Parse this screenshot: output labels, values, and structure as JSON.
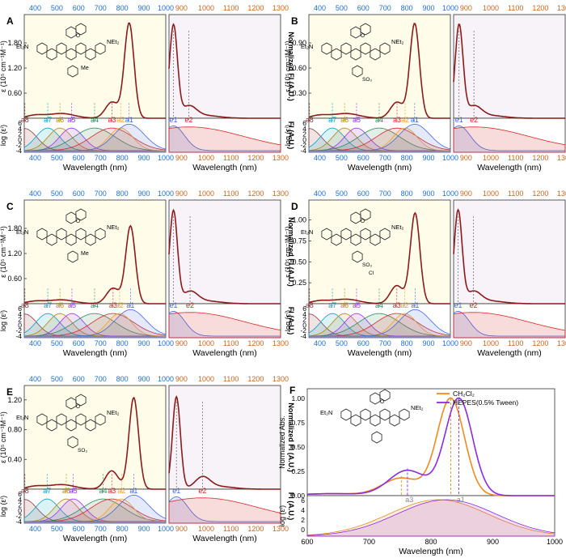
{
  "figure": {
    "x_label": "Wavelength (nm)",
    "abs_y_label": "ε (10⁵ cm⁻¹M⁻¹)",
    "fl_y_label": "Normalized Fl (A.U.)",
    "log_y_label": "log (εⁱ)",
    "fl_small_y_label": "Fl (A.U.)",
    "abs_x_ticks": [
      "400",
      "500",
      "600",
      "700",
      "800",
      "900",
      "1000"
    ],
    "fl_x_ticks": [
      "900",
      "1000",
      "1100",
      "1200",
      "1300"
    ],
    "log_y_ticks": [
      "6",
      "4",
      "2",
      "0",
      "-2",
      "-4"
    ],
    "abs_labels": [
      "a8",
      "a7",
      "a6",
      "a5",
      "a4",
      "a3",
      "a2",
      "a1"
    ],
    "em_labels": [
      "e1",
      "e2"
    ],
    "substituents": {
      "net2": "NEt₂",
      "et2n": "Et₂N",
      "me": "Me",
      "so3": "SO₃",
      "cl": "Cl",
      "o": "O"
    }
  },
  "chart_data": [
    {
      "panel": "A",
      "type": "line",
      "abs_yticks": [
        0.6,
        1.2,
        1.8
      ],
      "abs_ymax": 2.4,
      "abs_peak": 2.27,
      "shoulder_ratio": 0.17,
      "components": [
        {
          "label": "a8",
          "x": 353
        },
        {
          "label": "a7",
          "x": 458
        },
        {
          "label": "a6",
          "x": 514
        },
        {
          "label": "a5",
          "x": 567
        },
        {
          "label": "a4",
          "x": 673
        },
        {
          "label": "a3",
          "x": 753
        },
        {
          "label": "a2",
          "x": 793
        },
        {
          "label": "a1",
          "x": 832
        }
      ],
      "emission": [
        {
          "label": "e1",
          "x": 868
        },
        {
          "label": "e2",
          "x": 930
        }
      ]
    },
    {
      "panel": "B",
      "type": "line",
      "abs_yticks": [
        0.3,
        0.6,
        0.9
      ],
      "abs_ymax": 1.2,
      "abs_peak": 1.13,
      "shoulder_ratio": 0.17,
      "components": [
        {
          "label": "a8",
          "x": 353
        },
        {
          "label": "a7",
          "x": 458
        },
        {
          "label": "a6",
          "x": 514
        },
        {
          "label": "a5",
          "x": 569
        },
        {
          "label": "a4",
          "x": 673
        },
        {
          "label": "a3",
          "x": 755
        },
        {
          "label": "a2",
          "x": 792
        },
        {
          "label": "a1",
          "x": 836
        }
      ],
      "emission": [
        {
          "label": "e1",
          "x": 872
        },
        {
          "label": "e2",
          "x": 932
        }
      ]
    },
    {
      "panel": "C",
      "type": "line",
      "abs_yticks": [
        0.6,
        1.2,
        1.8
      ],
      "abs_ymax": 2.4,
      "abs_peak": 1.85,
      "shoulder_ratio": 0.2,
      "components": [
        {
          "label": "a8",
          "x": 353
        },
        {
          "label": "a7",
          "x": 458
        },
        {
          "label": "a6",
          "x": 514
        },
        {
          "label": "a5",
          "x": 569
        },
        {
          "label": "a4",
          "x": 673
        },
        {
          "label": "a3",
          "x": 758
        },
        {
          "label": "a2",
          "x": 788
        },
        {
          "label": "a1",
          "x": 838
        }
      ],
      "emission": [
        {
          "label": "e1",
          "x": 868
        },
        {
          "label": "e2",
          "x": 935
        }
      ]
    },
    {
      "panel": "D",
      "type": "line",
      "abs_yticks": [
        0.25,
        0.5,
        0.75,
        1.0
      ],
      "abs_ymax": 1.2,
      "abs_peak": 1.08,
      "shoulder_ratio": 0.2,
      "components": [
        {
          "label": "a8",
          "x": 353
        },
        {
          "label": "a7",
          "x": 458
        },
        {
          "label": "a6",
          "x": 514
        },
        {
          "label": "a5",
          "x": 569
        },
        {
          "label": "a4",
          "x": 673
        },
        {
          "label": "a3",
          "x": 754
        },
        {
          "label": "a2",
          "x": 790
        },
        {
          "label": "a1",
          "x": 838
        }
      ],
      "emission": [
        {
          "label": "e1",
          "x": 868
        },
        {
          "label": "e2",
          "x": 930
        }
      ]
    },
    {
      "panel": "E",
      "type": "line",
      "abs_yticks": [
        0.4,
        0.8,
        1.2
      ],
      "abs_ymax": 1.35,
      "abs_peak": 1.23,
      "shoulder_ratio": 0.2,
      "components": [
        {
          "label": "a8",
          "x": 353
        },
        {
          "label": "a7",
          "x": 455
        },
        {
          "label": "a6",
          "x": 543
        },
        {
          "label": "a5",
          "x": 575
        },
        {
          "label": "a4",
          "x": 712
        },
        {
          "label": "a3",
          "x": 752
        },
        {
          "label": "a2",
          "x": 797
        },
        {
          "label": "a1",
          "x": 853
        }
      ],
      "emission": [
        {
          "label": "e1",
          "x": 880
        },
        {
          "label": "e2",
          "x": 985
        }
      ]
    },
    {
      "panel": "F",
      "type": "line",
      "title": "",
      "xlabel": "Wavelength (nm)",
      "ylabel": "Normalized Abs.",
      "log_ylabel": "log (εⁱ)",
      "xlim": [
        600,
        1000
      ],
      "ylim": [
        0,
        1.1
      ],
      "xticks": [
        "600",
        "700",
        "800",
        "900",
        "1000"
      ],
      "yticks": [
        "0.00",
        "0.25",
        "0.50",
        "0.75",
        "1.00"
      ],
      "log_yticks": [
        "6",
        "4",
        "2",
        "0"
      ],
      "legend_position": "top-right",
      "series": [
        {
          "name": "CH₂Cl₂",
          "color": "#f08a1c",
          "peak_x": 832,
          "shoulder_x": 752,
          "shoulder_y": 0.18
        },
        {
          "name": "HEPES(0.5% Tween)",
          "color": "#8a2be2",
          "peak_x": 845,
          "shoulder_x": 762,
          "shoulder_y": 0.26
        }
      ],
      "components": [
        {
          "label": "a3",
          "x": 765
        },
        {
          "label": "a1",
          "x": 848
        }
      ]
    }
  ]
}
